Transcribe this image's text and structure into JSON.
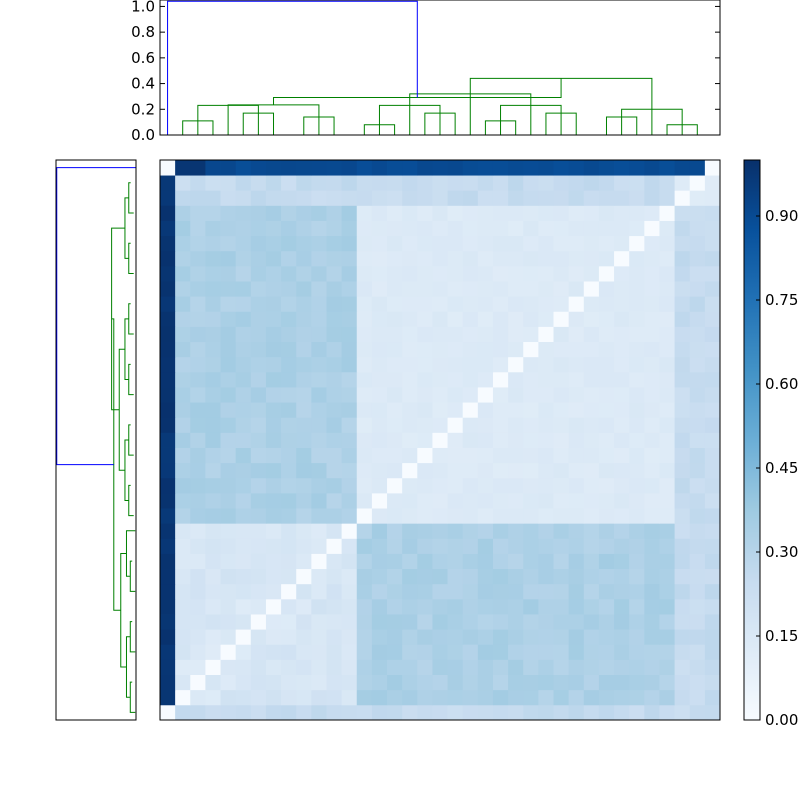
{
  "chart_data": {
    "type": "heatmap",
    "n": 37,
    "colormap": "Blues",
    "grid": false,
    "colorbar": {
      "range": [
        0.0,
        1.0
      ],
      "ticks": [
        0.0,
        0.15,
        0.3,
        0.45,
        0.6,
        0.75,
        0.9
      ],
      "tick_labels": [
        "0.00",
        "0.15",
        "0.30",
        "0.45",
        "0.60",
        "0.75",
        "0.90"
      ]
    },
    "top_dendrogram": {
      "ylim": [
        0,
        1.05
      ],
      "ticks": [
        0.0,
        0.2,
        0.4,
        0.6,
        0.8,
        1.0
      ],
      "tick_labels": [
        "0.0",
        "0.2",
        "0.4",
        "0.6",
        "0.8",
        "1.0"
      ],
      "colors": {
        "root": "#0000ff",
        "cluster": "#008000"
      },
      "linkage_heights": {
        "root": 1.04,
        "left_cluster": 0.26,
        "right_cluster": 0.53
      }
    },
    "left_dendrogram": {
      "colors": {
        "root": "#0000ff",
        "cluster": "#008000"
      }
    },
    "blocks": {
      "outlier_row": [
        0.98,
        0.1,
        0.9
      ],
      "left_cluster": [
        0.9,
        0.15,
        0.05,
        0.4
      ],
      "right_cluster": [
        0.95,
        0.35,
        0.12,
        0.03
      ],
      "mixed_block": 0.25,
      "column_0": 0.85
    },
    "title": "",
    "xlabel": "",
    "ylabel": ""
  }
}
